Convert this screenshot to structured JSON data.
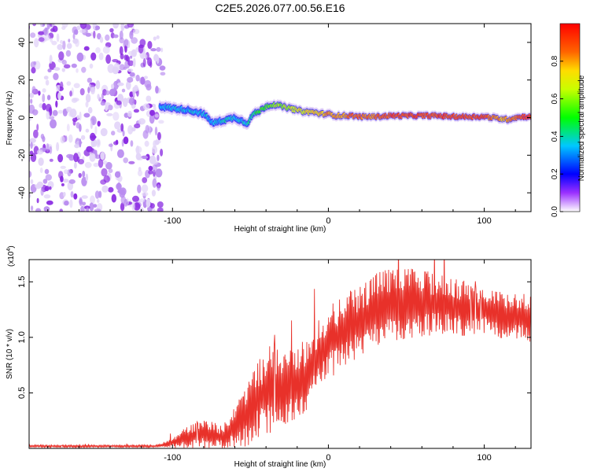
{
  "chart_data": [
    {
      "type": "heatmap",
      "title": "C2E5.2026.077.00.56.E16",
      "xlabel": "Height of straight line (km)",
      "ylabel": "Frequency (Hz)",
      "xlim": [
        -192,
        130
      ],
      "ylim": [
        -50,
        50
      ],
      "xticks": [
        -100,
        0,
        100
      ],
      "xtick_labels": [
        "-100",
        "0",
        "100"
      ],
      "yticks": [
        -40,
        -20,
        0,
        20,
        40
      ],
      "ytick_labels": [
        "-40",
        "-20",
        "0",
        "20",
        "40"
      ],
      "noise_region_x": [
        -192,
        -107
      ],
      "colorbar": {
        "label": "Normalized spectral amplitude",
        "range": [
          0,
          1
        ],
        "ticks": [
          0.0,
          0.2,
          0.4,
          0.6,
          0.8
        ],
        "tick_labels": [
          "0.0",
          "0.2",
          "0.4",
          "0.6",
          "0.8"
        ]
      },
      "signal_trace": {
        "x": [
          -108,
          -100,
          -90,
          -80,
          -74,
          -70,
          -65,
          -60,
          -55,
          -52,
          -48,
          -45,
          -40,
          -35,
          -30,
          -25,
          -20,
          -15,
          -10,
          -5,
          0,
          5,
          10,
          15,
          20,
          30,
          40,
          50,
          60,
          70,
          80,
          90,
          100,
          105,
          110,
          115,
          120,
          125,
          130
        ],
        "freq_hz": [
          6,
          5,
          4,
          2,
          -3,
          -2,
          -1,
          0,
          -2,
          -3,
          2,
          3,
          6,
          7,
          6,
          5,
          4,
          3,
          3,
          2,
          2,
          1,
          1,
          1,
          0.5,
          0.5,
          1,
          1,
          1,
          1,
          0.5,
          0.5,
          0.5,
          0,
          -0.5,
          -1,
          0,
          0.5,
          0.5
        ],
        "amplitude": [
          0.3,
          0.35,
          0.35,
          0.35,
          0.35,
          0.35,
          0.4,
          0.35,
          0.35,
          0.4,
          0.45,
          0.5,
          0.55,
          0.6,
          0.6,
          0.65,
          0.7,
          0.7,
          0.75,
          0.75,
          0.8,
          0.8,
          0.8,
          0.85,
          0.85,
          0.85,
          0.9,
          0.9,
          0.9,
          0.9,
          0.9,
          0.9,
          0.9,
          0.85,
          0.8,
          0.8,
          0.85,
          0.9,
          0.95
        ]
      }
    },
    {
      "type": "line",
      "xlabel": "Height of straight line (km)",
      "ylabel": "SNR (10 * v/v)",
      "multiplier_label": "(x10",
      "multiplier_exp": "4",
      "multiplier_close": ")",
      "xlim": [
        -192,
        130
      ],
      "ylim": [
        0,
        1.7
      ],
      "xticks": [
        -100,
        0,
        100
      ],
      "xtick_labels": [
        "-100",
        "0",
        "100"
      ],
      "yticks": [
        0.5,
        1.0,
        1.5
      ],
      "ytick_labels": [
        "0.5",
        "1.0",
        "1.5"
      ],
      "color": "#e8312a",
      "series": [
        {
          "name": "SNR",
          "envelope_x": [
            -192,
            -110,
            -100,
            -90,
            -80,
            -75,
            -70,
            -65,
            -60,
            -55,
            -50,
            -45,
            -40,
            -35,
            -30,
            -25,
            -20,
            -15,
            -10,
            -5,
            0,
            5,
            10,
            15,
            20,
            25,
            30,
            40,
            50,
            60,
            70,
            80,
            90,
            100,
            110,
            120,
            130
          ],
          "mean": [
            0.02,
            0.02,
            0.05,
            0.1,
            0.13,
            0.13,
            0.1,
            0.12,
            0.2,
            0.28,
            0.35,
            0.45,
            0.5,
            0.55,
            0.55,
            0.55,
            0.6,
            0.65,
            0.75,
            0.85,
            0.95,
            1.0,
            1.05,
            1.1,
            1.15,
            1.2,
            1.25,
            1.3,
            1.3,
            1.3,
            1.3,
            1.28,
            1.25,
            1.25,
            1.2,
            1.2,
            1.15
          ],
          "spread": [
            0.01,
            0.01,
            0.04,
            0.1,
            0.12,
            0.12,
            0.1,
            0.12,
            0.18,
            0.25,
            0.3,
            0.32,
            0.35,
            0.38,
            0.3,
            0.3,
            0.3,
            0.3,
            0.3,
            0.3,
            0.3,
            0.3,
            0.3,
            0.3,
            0.3,
            0.3,
            0.32,
            0.3,
            0.3,
            0.28,
            0.25,
            0.25,
            0.22,
            0.2,
            0.2,
            0.2,
            0.2
          ]
        }
      ]
    }
  ]
}
